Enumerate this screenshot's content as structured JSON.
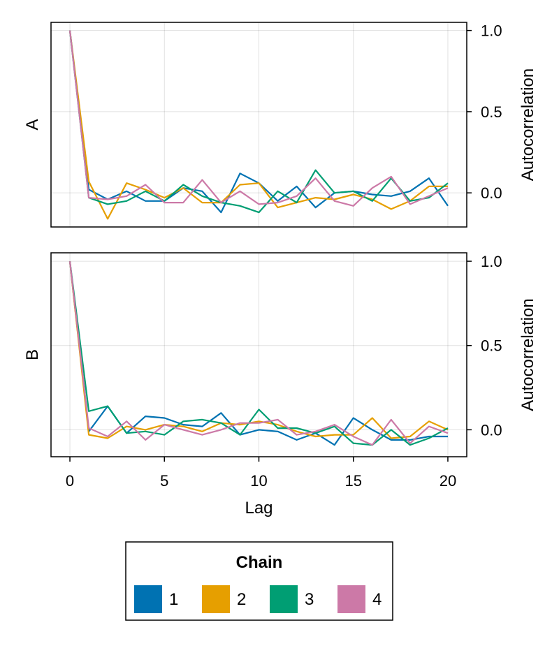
{
  "chart_data": {
    "type": "line",
    "x": [
      0,
      1,
      2,
      3,
      4,
      5,
      6,
      7,
      8,
      9,
      10,
      11,
      12,
      13,
      14,
      15,
      16,
      17,
      18,
      19,
      20
    ],
    "xlabel": "Lag",
    "xlim": [
      -1,
      21
    ],
    "xticks": [
      0,
      5,
      10,
      15,
      20
    ],
    "xtick_labels": [
      "0",
      "5",
      "10",
      "15",
      "20"
    ],
    "grid": true,
    "legend": {
      "title": "Chain",
      "placement": "bottom",
      "entries": [
        "1",
        "2",
        "3",
        "4"
      ]
    },
    "colors": [
      "#0072b2",
      "#e69f00",
      "#009e73",
      "#cc79a7"
    ],
    "panels": [
      {
        "label": "A",
        "ylabel": "Autocorrelation",
        "ylim": [
          -0.21,
          1.05
        ],
        "yticks": [
          0.0,
          0.5,
          1.0
        ],
        "ytick_labels": [
          "0.0",
          "0.5",
          "1.0"
        ],
        "series": [
          {
            "name": "1",
            "values": [
              1.0,
              0.02,
              -0.04,
              0.01,
              -0.05,
              -0.05,
              0.03,
              0.01,
              -0.12,
              0.12,
              0.06,
              -0.05,
              0.04,
              -0.09,
              0.0,
              0.01,
              -0.01,
              -0.02,
              0.01,
              0.09,
              -0.08
            ]
          },
          {
            "name": "2",
            "values": [
              1.0,
              0.07,
              -0.16,
              0.06,
              0.02,
              -0.03,
              0.03,
              -0.06,
              -0.06,
              0.05,
              0.06,
              -0.09,
              -0.06,
              -0.03,
              -0.04,
              -0.01,
              -0.04,
              -0.1,
              -0.05,
              0.04,
              0.04
            ]
          },
          {
            "name": "3",
            "values": [
              1.0,
              -0.03,
              -0.07,
              -0.05,
              0.01,
              -0.05,
              0.05,
              -0.02,
              -0.06,
              -0.08,
              -0.12,
              0.01,
              -0.06,
              0.14,
              -0.0,
              0.01,
              -0.05,
              0.09,
              -0.05,
              -0.03,
              0.06
            ]
          },
          {
            "name": "4",
            "values": [
              1.0,
              -0.03,
              -0.04,
              -0.02,
              0.05,
              -0.06,
              -0.06,
              0.08,
              -0.06,
              0.01,
              -0.07,
              -0.06,
              -0.02,
              0.09,
              -0.05,
              -0.08,
              0.03,
              0.1,
              -0.07,
              -0.02,
              0.03
            ]
          }
        ]
      },
      {
        "label": "B",
        "ylabel": "Autocorrelation",
        "ylim": [
          -0.16,
          1.05
        ],
        "yticks": [
          0.0,
          0.5,
          1.0
        ],
        "ytick_labels": [
          "0.0",
          "0.5",
          "1.0"
        ],
        "series": [
          {
            "name": "1",
            "values": [
              1.0,
              -0.01,
              0.14,
              -0.02,
              0.08,
              0.07,
              0.03,
              0.02,
              0.1,
              -0.03,
              0.0,
              -0.01,
              -0.06,
              -0.02,
              -0.09,
              0.07,
              0.0,
              -0.06,
              -0.06,
              -0.04,
              -0.04
            ]
          },
          {
            "name": "2",
            "values": [
              1.0,
              -0.03,
              -0.05,
              0.02,
              -0.0,
              0.03,
              0.02,
              -0.01,
              0.04,
              0.03,
              0.05,
              0.03,
              -0.01,
              -0.04,
              -0.03,
              -0.03,
              0.07,
              -0.05,
              -0.04,
              0.05,
              0.0
            ]
          },
          {
            "name": "3",
            "values": [
              1.0,
              0.11,
              0.14,
              -0.02,
              -0.01,
              -0.03,
              0.05,
              0.06,
              0.04,
              -0.03,
              0.12,
              0.01,
              0.01,
              -0.02,
              0.02,
              -0.08,
              -0.09,
              0.0,
              -0.09,
              -0.05,
              0.01
            ]
          },
          {
            "name": "4",
            "values": [
              1.0,
              0.01,
              -0.04,
              0.05,
              -0.06,
              0.03,
              0.0,
              -0.03,
              0.0,
              0.04,
              0.04,
              0.06,
              -0.03,
              -0.01,
              0.03,
              -0.04,
              -0.09,
              0.06,
              -0.08,
              0.02,
              -0.02
            ]
          }
        ]
      }
    ]
  }
}
